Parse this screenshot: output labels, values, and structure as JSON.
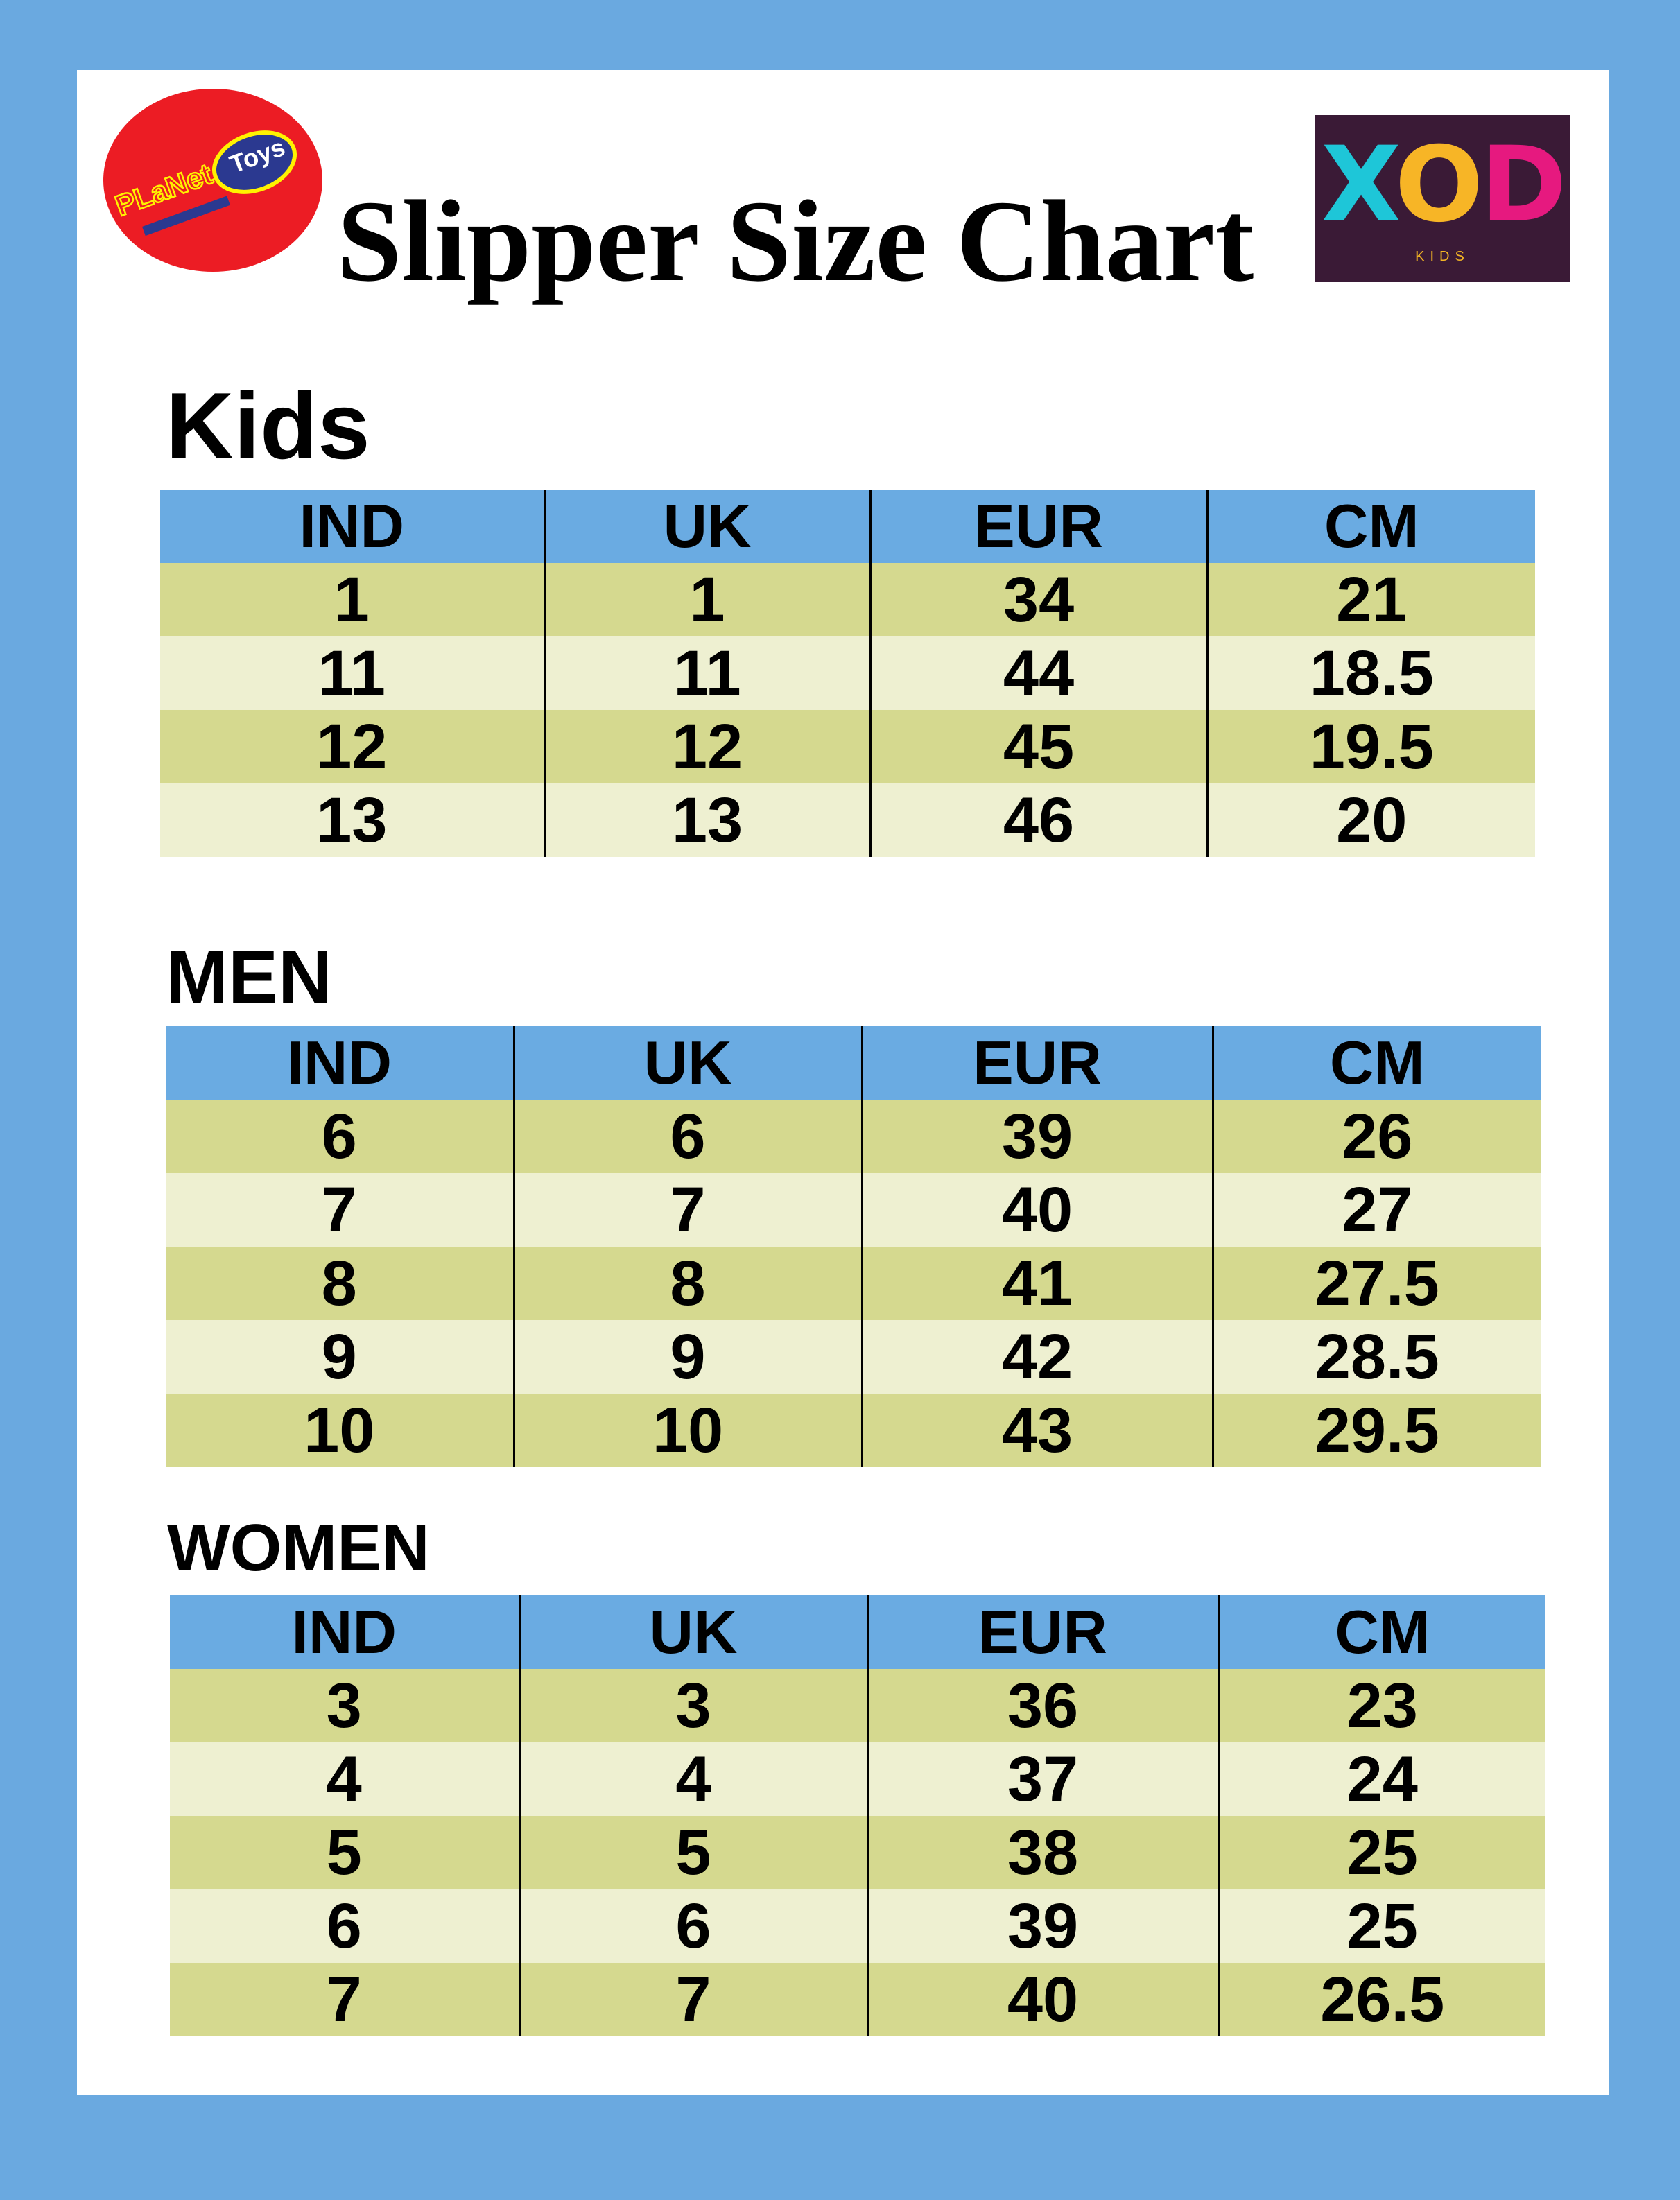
{
  "title": "Slipper Size Chart",
  "logos": {
    "left": "Planet of Toys",
    "right": {
      "text": "XOD",
      "sub": "KIDS"
    }
  },
  "colors": {
    "background": "#6aa9e0",
    "header": "#6aabe2",
    "row_dark": "#d5d98f",
    "row_light": "#eef0d1"
  },
  "headers": [
    "IND",
    "UK",
    "EUR",
    "CM"
  ],
  "sections": [
    {
      "heading": "Kids",
      "rows": [
        [
          "1",
          "1",
          "34",
          "21"
        ],
        [
          "11",
          "11",
          "44",
          "18.5"
        ],
        [
          "12",
          "12",
          "45",
          "19.5"
        ],
        [
          "13",
          "13",
          "46",
          "20"
        ]
      ]
    },
    {
      "heading": "MEN",
      "rows": [
        [
          "6",
          "6",
          "39",
          "26"
        ],
        [
          "7",
          "7",
          "40",
          "27"
        ],
        [
          "8",
          "8",
          "41",
          "27.5"
        ],
        [
          "9",
          "9",
          "42",
          "28.5"
        ],
        [
          "10",
          "10",
          "43",
          "29.5"
        ]
      ]
    },
    {
      "heading": "WOMEN",
      "rows": [
        [
          "3",
          "3",
          "36",
          "23"
        ],
        [
          "4",
          "4",
          "37",
          "24"
        ],
        [
          "5",
          "5",
          "38",
          "25"
        ],
        [
          "6",
          "6",
          "39",
          "25"
        ],
        [
          "7",
          "7",
          "40",
          "26.5"
        ]
      ]
    }
  ]
}
